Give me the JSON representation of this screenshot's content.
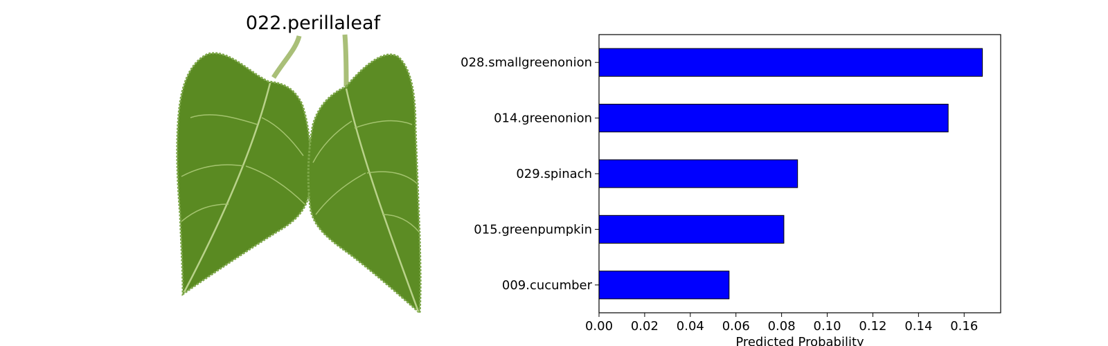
{
  "image_panel": {
    "title": "022.perillaleaf",
    "colors": {
      "leaf_dark": "#4a7a1c",
      "leaf_light": "#6e9c2e",
      "vein": "#b9d28a",
      "stem": "#a9bf78"
    }
  },
  "chart_data": {
    "type": "bar",
    "orientation": "horizontal",
    "categories": [
      "028.smallgreenonion",
      "014.greenonion",
      "029.spinach",
      "015.greenpumpkin",
      "009.cucumber"
    ],
    "values": [
      0.168,
      0.153,
      0.087,
      0.081,
      0.057
    ],
    "xlabel": "Predicted Probability",
    "ylabel": "",
    "xlim": [
      0,
      0.176
    ],
    "xticks": [
      0.0,
      0.02,
      0.04,
      0.06,
      0.08,
      0.1,
      0.12,
      0.14,
      0.16
    ],
    "xtick_labels": [
      "0.00",
      "0.02",
      "0.04",
      "0.06",
      "0.08",
      "0.10",
      "0.12",
      "0.14",
      "0.16"
    ],
    "grid": false,
    "bar_color": "#0000ff",
    "edge_color": "#000000"
  }
}
